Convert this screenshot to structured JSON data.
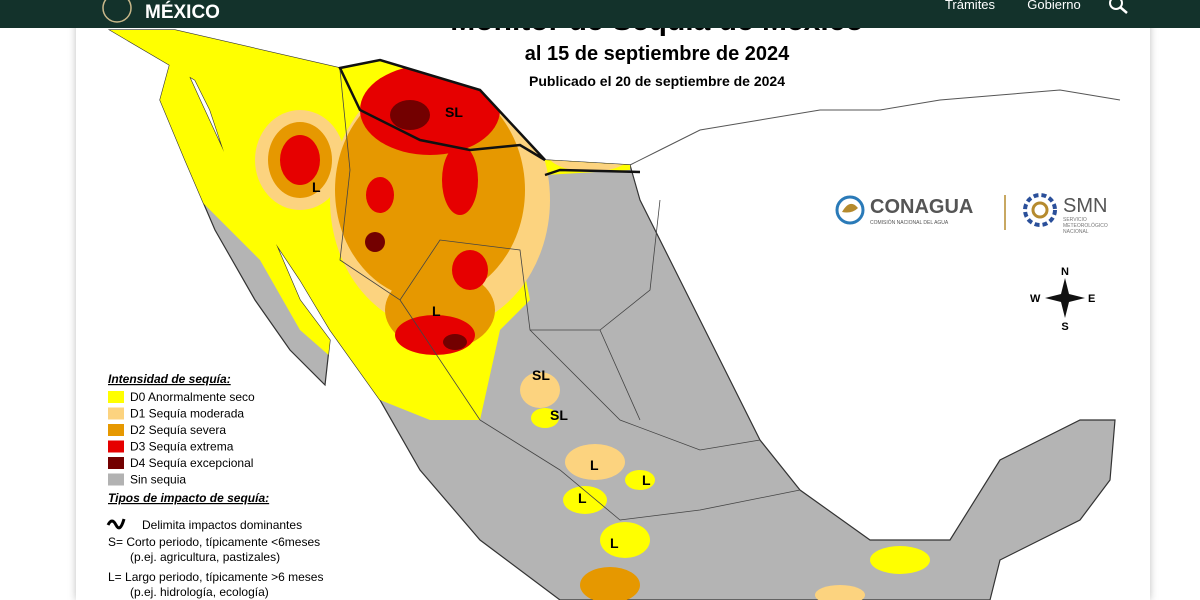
{
  "header": {
    "brand": "MÉXICO",
    "nav": [
      "Trámites",
      "Gobierno"
    ]
  },
  "map": {
    "title": "Monitor de Sequía de México",
    "subtitle": "al 15 de septiembre de 2024",
    "published": "Publicado el 20 de septiembre de 2024",
    "labels": [
      "SL",
      "L",
      "L",
      "SL",
      "SL",
      "L",
      "L",
      "L",
      "L"
    ],
    "legend": {
      "title": "Intensidad de sequía:",
      "items": [
        {
          "label": "D0 Anormalmente seco",
          "color": "#ffff00"
        },
        {
          "label": "D1 Sequía moderada",
          "color": "#fcd37f"
        },
        {
          "label": "D2 Sequía severa",
          "color": "#e69800"
        },
        {
          "label": "D3 Sequía extrema",
          "color": "#e60000"
        },
        {
          "label": "D4 Sequía excepcional",
          "color": "#730000"
        },
        {
          "label": "Sin sequia",
          "color": "#b2b2b2"
        }
      ]
    },
    "impact": {
      "title": "Tipos de impacto de sequía:",
      "boundary": "Delimita impactos dominantes",
      "lines": [
        "S= Corto periodo, típicamente <6meses",
        "(p.ej. agricultura, pastizales)",
        "L= Largo periodo, típicamente >6 meses",
        "(p.ej. hidrología, ecología)"
      ]
    },
    "logos": {
      "conagua": "CONAGUA",
      "conagua_sub": "COMISIÓN NACIONAL DEL AGUA",
      "smn": "SMN",
      "smn_sub": [
        "SERVICIO",
        "METEOROLÓGICO",
        "NACIONAL"
      ]
    },
    "compass": [
      "N",
      "S",
      "E",
      "W"
    ]
  }
}
